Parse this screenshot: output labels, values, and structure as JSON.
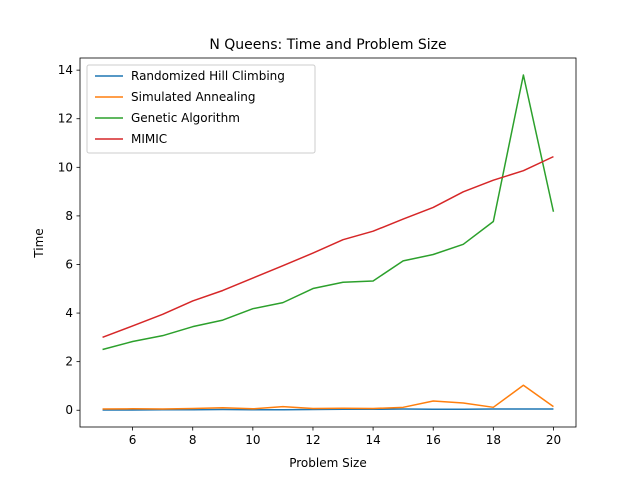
{
  "chart_data": {
    "type": "line",
    "title": "N Queens: Time and Problem Size",
    "xlabel": "Problem Size",
    "ylabel": "Time",
    "xlim": [
      4.25,
      20.75
    ],
    "ylim": [
      -0.69,
      14.5
    ],
    "xticks": [
      6,
      8,
      10,
      12,
      14,
      16,
      18,
      20
    ],
    "yticks": [
      0,
      2,
      4,
      6,
      8,
      10,
      12,
      14
    ],
    "grid": false,
    "legend_position": "top-left",
    "x": [
      5,
      6,
      7,
      8,
      9,
      10,
      11,
      12,
      13,
      14,
      15,
      16,
      17,
      18,
      19,
      20
    ],
    "series": [
      {
        "name": "Randomized Hill Climbing",
        "color": "#1f77b4",
        "values": [
          0.01,
          0.01,
          0.02,
          0.02,
          0.03,
          0.02,
          0.02,
          0.03,
          0.04,
          0.04,
          0.05,
          0.04,
          0.04,
          0.05,
          0.05,
          0.05
        ]
      },
      {
        "name": "Simulated Annealing",
        "color": "#ff7f0e",
        "values": [
          0.05,
          0.06,
          0.05,
          0.07,
          0.1,
          0.06,
          0.15,
          0.07,
          0.08,
          0.07,
          0.12,
          0.38,
          0.3,
          0.12,
          1.03,
          0.15
        ]
      },
      {
        "name": "Genetic Algorithm",
        "color": "#2ca02c",
        "values": [
          2.5,
          2.83,
          3.07,
          3.44,
          3.71,
          4.18,
          4.43,
          5.01,
          5.27,
          5.32,
          6.15,
          6.41,
          6.83,
          7.77,
          13.8,
          8.17
        ]
      },
      {
        "name": "MIMIC",
        "color": "#d62728",
        "values": [
          3.0,
          3.47,
          3.95,
          4.5,
          4.93,
          5.44,
          5.95,
          6.47,
          7.02,
          7.37,
          7.87,
          8.35,
          8.99,
          9.47,
          9.86,
          10.44
        ]
      }
    ]
  }
}
